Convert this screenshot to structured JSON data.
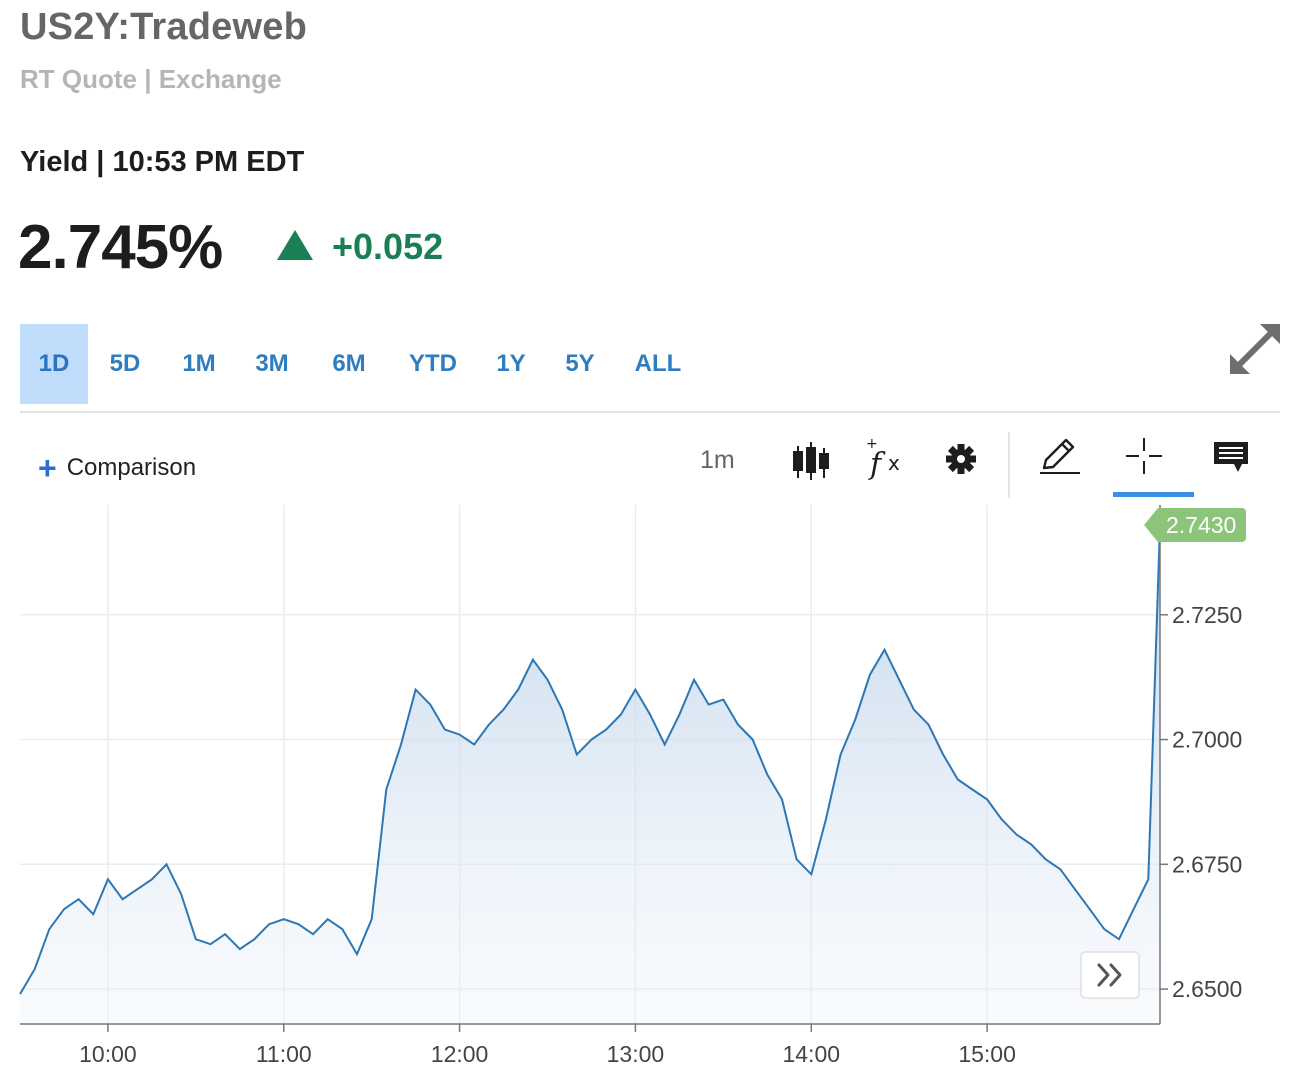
{
  "header": {
    "symbol": "US2Y:Tradeweb",
    "subtitle": "RT Quote | Exchange",
    "yield_label": "Yield | 10:53 PM EDT",
    "price": "2.745%",
    "change": "+0.052",
    "change_direction_icon": "triangle-up-icon",
    "change_color": "#1a7f53"
  },
  "range_tabs": {
    "items": [
      "1D",
      "5D",
      "1M",
      "3M",
      "6M",
      "YTD",
      "1Y",
      "5Y",
      "ALL"
    ],
    "active": "1D"
  },
  "toolbar": {
    "comparison_label": "Comparison",
    "interval": "1m",
    "icons": [
      "candlestick-icon",
      "function-icon",
      "gear-icon",
      "pencil-icon",
      "crosshair-icon",
      "comment-icon",
      "expand-icon"
    ]
  },
  "chart_data": {
    "type": "area",
    "title": "",
    "xlabel": "",
    "ylabel": "",
    "x_tick_labels": [
      "10:00",
      "11:00",
      "12:00",
      "13:00",
      "14:00",
      "15:00"
    ],
    "y_tick_labels": [
      "2.7250",
      "2.7000",
      "2.6750",
      "2.6500"
    ],
    "ylim": [
      2.643,
      2.747
    ],
    "xlim": [
      "09:30",
      "15:59"
    ],
    "last_value_label": "2.7430",
    "grid": true,
    "line_color": "#2c77b4",
    "last_badge_color": "#8cc47a",
    "series": [
      {
        "x": [
          "09:30",
          "09:35",
          "09:40",
          "09:45",
          "09:50",
          "09:55",
          "10:00",
          "10:05",
          "10:10",
          "10:15",
          "10:20",
          "10:25",
          "10:30",
          "10:35",
          "10:40",
          "10:45",
          "10:50",
          "10:55",
          "11:00",
          "11:05",
          "11:10",
          "11:15",
          "11:20",
          "11:25",
          "11:30",
          "11:35",
          "11:40",
          "11:45",
          "11:50",
          "11:55",
          "12:00",
          "12:05",
          "12:10",
          "12:15",
          "12:20",
          "12:25",
          "12:30",
          "12:35",
          "12:40",
          "12:45",
          "12:50",
          "12:55",
          "13:00",
          "13:05",
          "13:10",
          "13:15",
          "13:20",
          "13:25",
          "13:30",
          "13:35",
          "13:40",
          "13:45",
          "13:50",
          "13:55",
          "14:00",
          "14:05",
          "14:10",
          "14:15",
          "14:20",
          "14:25",
          "14:30",
          "14:35",
          "14:40",
          "14:45",
          "14:50",
          "14:55",
          "15:00",
          "15:05",
          "15:10",
          "15:15",
          "15:20",
          "15:25",
          "15:30",
          "15:35",
          "15:40",
          "15:45",
          "15:50",
          "15:55",
          "15:59"
        ],
        "values": [
          2.649,
          2.654,
          2.662,
          2.666,
          2.668,
          2.665,
          2.672,
          2.668,
          2.67,
          2.672,
          2.675,
          2.669,
          2.66,
          2.659,
          2.661,
          2.658,
          2.66,
          2.663,
          2.664,
          2.663,
          2.661,
          2.664,
          2.662,
          2.657,
          2.664,
          2.69,
          2.699,
          2.71,
          2.707,
          2.702,
          2.701,
          2.699,
          2.703,
          2.706,
          2.71,
          2.716,
          2.712,
          2.706,
          2.697,
          2.7,
          2.702,
          2.705,
          2.71,
          2.705,
          2.699,
          2.705,
          2.712,
          2.707,
          2.708,
          2.703,
          2.7,
          2.693,
          2.688,
          2.676,
          2.673,
          2.684,
          2.697,
          2.704,
          2.713,
          2.718,
          2.712,
          2.706,
          2.703,
          2.697,
          2.692,
          2.69,
          2.688,
          2.684,
          2.681,
          2.679,
          2.676,
          2.674,
          2.67,
          2.666,
          2.662,
          2.66,
          2.666,
          2.672,
          2.743
        ]
      }
    ]
  }
}
